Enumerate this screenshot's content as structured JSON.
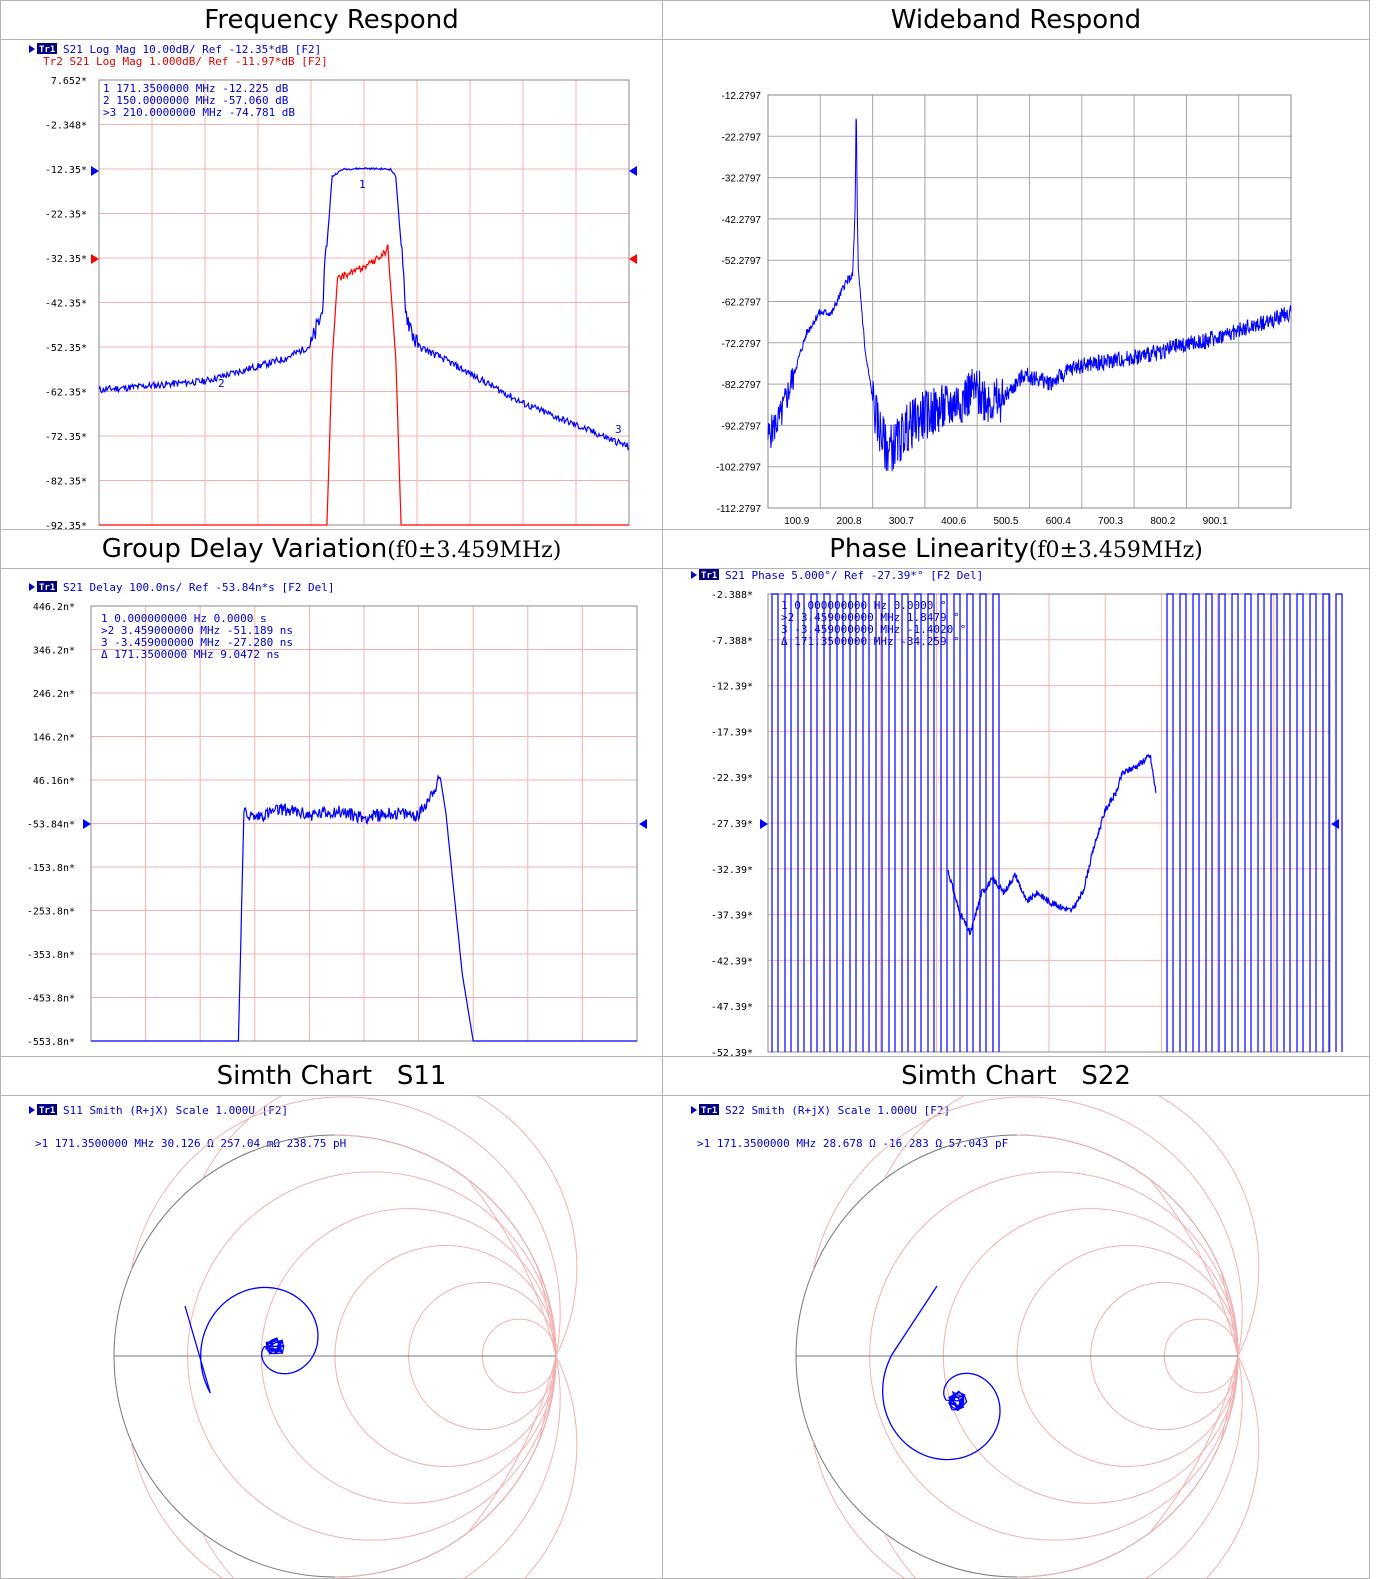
{
  "panels": {
    "p1": {
      "title": "Frequency Respond",
      "header1": "S21 Log Mag 10.00dB/ Ref -12.35*dB [F2]",
      "header1_badge": "Tr1",
      "header2": "Tr2 S21 Log Mag 1.000dB/ Ref -11.97*dB [F2]",
      "markers": [
        "1   171.3500000 MHz -12.225 dB",
        "2   150.0000000 MHz -57.060 dB",
        ">3  210.0000000 MHz -74.781 dB"
      ]
    },
    "p2": {
      "title": "Wideband Respond"
    },
    "p3": {
      "title_a": "Group Delay Variation",
      "title_b": "(f0±3.459MHz)",
      "header": "S21 Delay 100.0ns/ Ref -53.84n*s [F2 Del]",
      "badge": "Tr1",
      "markers": [
        "1  0.000000000 Hz    0.0000 s",
        ">2  3.459000000 MHz -51.189 ns",
        "3  -3.459000000 MHz -27.280 ns",
        "Δ  171.3500000 MHz  9.0472 ns"
      ]
    },
    "p4": {
      "title_a": "Phase Linearity",
      "title_b": "(f0±3.459MHz)",
      "header": "S21 Phase 5.000°/ Ref -27.39*° [F2 Del]",
      "badge": "Tr1",
      "markers": [
        "1  0.000000000 Hz    0.0000 °",
        ">2  3.459000000 MHz  1.8479 °",
        "3  -3.459000000 MHz -1.4020 °",
        "Δ  171.3500000 MHz -34.259 °"
      ]
    },
    "p5": {
      "title": "Simth Chart   S11",
      "header": "S11 Smith (R+jX) Scale 1.000U [F2]",
      "badge": "Tr1",
      "marker": ">1  171.3500000 MHz  30.126 Ω  257.04 mΩ  238.75 pH"
    },
    "p6": {
      "title": "Simth Chart   S22",
      "header": "S22 Smith (R+jX) Scale 1.000U [F2]",
      "badge": "Tr1",
      "marker": ">1  171.3500000 MHz  28.678 Ω -16.283 Ω  57.043 pF"
    }
  },
  "chart_data": [
    {
      "type": "line",
      "title": "Frequency Respond",
      "y_ticks": [
        "7.652*",
        "-2.348*",
        "-12.35*",
        "-22.35*",
        "-32.35*",
        "-42.35*",
        "-52.35*",
        "-62.35*",
        "-72.35*",
        "-82.35*",
        "-92.35*"
      ],
      "ylim": [
        -92.35,
        7.652
      ],
      "series": [
        {
          "name": "Tr1 S21 Log Mag",
          "color": "#0000ff",
          "unit": "dB",
          "x_rel": [
            0,
            0.2,
            0.35,
            0.4,
            0.42,
            0.44,
            0.46,
            0.5,
            0.55,
            0.56,
            0.58,
            0.6,
            0.65,
            0.8,
            1.0
          ],
          "values": [
            -62,
            -60,
            -55,
            -52,
            -45,
            -14,
            -12.4,
            -12.2,
            -12.4,
            -14,
            -45,
            -52,
            -55,
            -65,
            -74.8
          ]
        },
        {
          "name": "Tr2 S21 Log Mag",
          "color": "#ff0000",
          "unit": "dB",
          "x_rel": [
            0,
            0.43,
            0.44,
            0.45,
            0.47,
            0.52,
            0.54,
            0.545,
            0.56,
            0.57,
            1.0
          ],
          "values": [
            -92.35,
            -92.35,
            -55,
            -37,
            -36,
            -33,
            -31,
            -30,
            -55,
            -92.35,
            -92.35
          ]
        }
      ],
      "markers": [
        {
          "id": "1",
          "freq_MHz": 171.35,
          "value_dB": -12.225
        },
        {
          "id": "2",
          "freq_MHz": 150.0,
          "value_dB": -57.06
        },
        {
          "id": "3",
          "freq_MHz": 210.0,
          "value_dB": -74.781
        }
      ]
    },
    {
      "type": "line",
      "title": "Wideband Respond",
      "y_ticks": [
        "-12.2797",
        "-22.2797",
        "-32.2797",
        "-42.2797",
        "-52.2797",
        "-62.2797",
        "-72.2797",
        "-82.2797",
        "-92.2797",
        "-102.2797",
        "-112.2797"
      ],
      "x_ticks": [
        "100.9",
        "200.8",
        "300.7",
        "400.6",
        "500.5",
        "600.4",
        "700.3",
        "800.2",
        "900.1"
      ],
      "ylim": [
        -112.2797,
        -12.2797
      ],
      "series": [
        {
          "name": "",
          "color": "#0000ff",
          "x": [
            0,
            25,
            50,
            75,
            100,
            125,
            150,
            165,
            170,
            172,
            174,
            176,
            180,
            190,
            210,
            230,
            250,
            270,
            300,
            350,
            400,
            450,
            500,
            550,
            600,
            650,
            700,
            750,
            800,
            850,
            900,
            950,
            1000,
            1020
          ],
          "values": [
            -95,
            -90,
            -80,
            -70,
            -65,
            -65,
            -58,
            -56,
            -40,
            -12.3,
            -40,
            -55,
            -60,
            -75,
            -90,
            -98,
            -97,
            -93,
            -90,
            -88,
            -84,
            -87,
            -80,
            -82,
            -78,
            -77,
            -76,
            -75,
            -73,
            -72,
            -70,
            -68,
            -66,
            -65
          ]
        }
      ]
    },
    {
      "type": "line",
      "title": "Group Delay Variation",
      "y_ticks": [
        "446.2n*",
        "346.2n*",
        "246.2n*",
        "146.2n*",
        "46.16n*",
        "-53.84n*",
        "-153.8n*",
        "-253.8n*",
        "-353.8n*",
        "-453.8n*",
        "-553.8n*"
      ],
      "ylim": [
        -553.8,
        446.2
      ],
      "series": [
        {
          "name": "S21 Delay",
          "color": "#0000ff",
          "unit": "ns",
          "x_rel": [
            0,
            0.22,
            0.27,
            0.28,
            0.3,
            0.35,
            0.4,
            0.45,
            0.5,
            0.55,
            0.6,
            0.64,
            0.65,
            0.68,
            0.7,
            1.0
          ],
          "values": [
            -553.8,
            -553.8,
            -553.8,
            -30,
            -40,
            -20,
            -35,
            -25,
            -40,
            -30,
            -35,
            50,
            -30,
            -400,
            -553.8,
            -553.8
          ]
        }
      ],
      "markers": [
        {
          "id": "1",
          "x": "0.000000000 Hz",
          "value": "0.0000 s"
        },
        {
          "id": "2",
          "x": "3.459000000 MHz",
          "value": "-51.189 ns"
        },
        {
          "id": "3",
          "x": "-3.459000000 MHz",
          "value": "-27.280 ns"
        },
        {
          "id": "Δ",
          "x": "171.3500000 MHz",
          "value": "9.0472 ns"
        }
      ]
    },
    {
      "type": "line",
      "title": "Phase Linearity",
      "y_ticks": [
        "-2.388*",
        "-7.388*",
        "-12.39*",
        "-17.39*",
        "-22.39*",
        "-27.39*",
        "-32.39*",
        "-37.39*",
        "-42.39*",
        "-47.39*",
        "-52.39*"
      ],
      "ylim": [
        -52.39,
        -2.388
      ],
      "series": [
        {
          "name": "S21 Phase",
          "color": "#0000ff",
          "unit": "deg",
          "x_rel": [
            0.32,
            0.34,
            0.36,
            0.38,
            0.4,
            0.42,
            0.44,
            0.46,
            0.48,
            0.5,
            0.52,
            0.54,
            0.56,
            0.58,
            0.6,
            0.62,
            0.63,
            0.66,
            0.68,
            0.69
          ],
          "values": [
            -32.5,
            -37,
            -39.5,
            -35,
            -33.5,
            -35,
            -33,
            -36,
            -35,
            -36,
            -36.5,
            -37,
            -35,
            -30,
            -26,
            -24,
            -22,
            -21,
            -20,
            -24
          ]
        }
      ],
      "markers": [
        {
          "id": "1",
          "x": "0.000000000 Hz",
          "value": "0.0000 °"
        },
        {
          "id": "2",
          "x": "3.459000000 MHz",
          "value": "1.8479 °"
        },
        {
          "id": "3",
          "x": "-3.459000000 MHz",
          "value": "-1.4020 °"
        },
        {
          "id": "Δ",
          "x": "171.3500000 MHz",
          "value": "-34.259 °"
        }
      ]
    },
    {
      "type": "smith",
      "title": "Simth Chart S11",
      "marker": {
        "freq_MHz": 171.35,
        "R_ohm": 30.126,
        "X": "257.04 mΩ",
        "L": "238.75 pH"
      }
    },
    {
      "type": "smith",
      "title": "Simth Chart S22",
      "marker": {
        "freq_MHz": 171.35,
        "R_ohm": 28.678,
        "X": "-16.283 Ω",
        "C": "57.043 pF"
      }
    }
  ]
}
